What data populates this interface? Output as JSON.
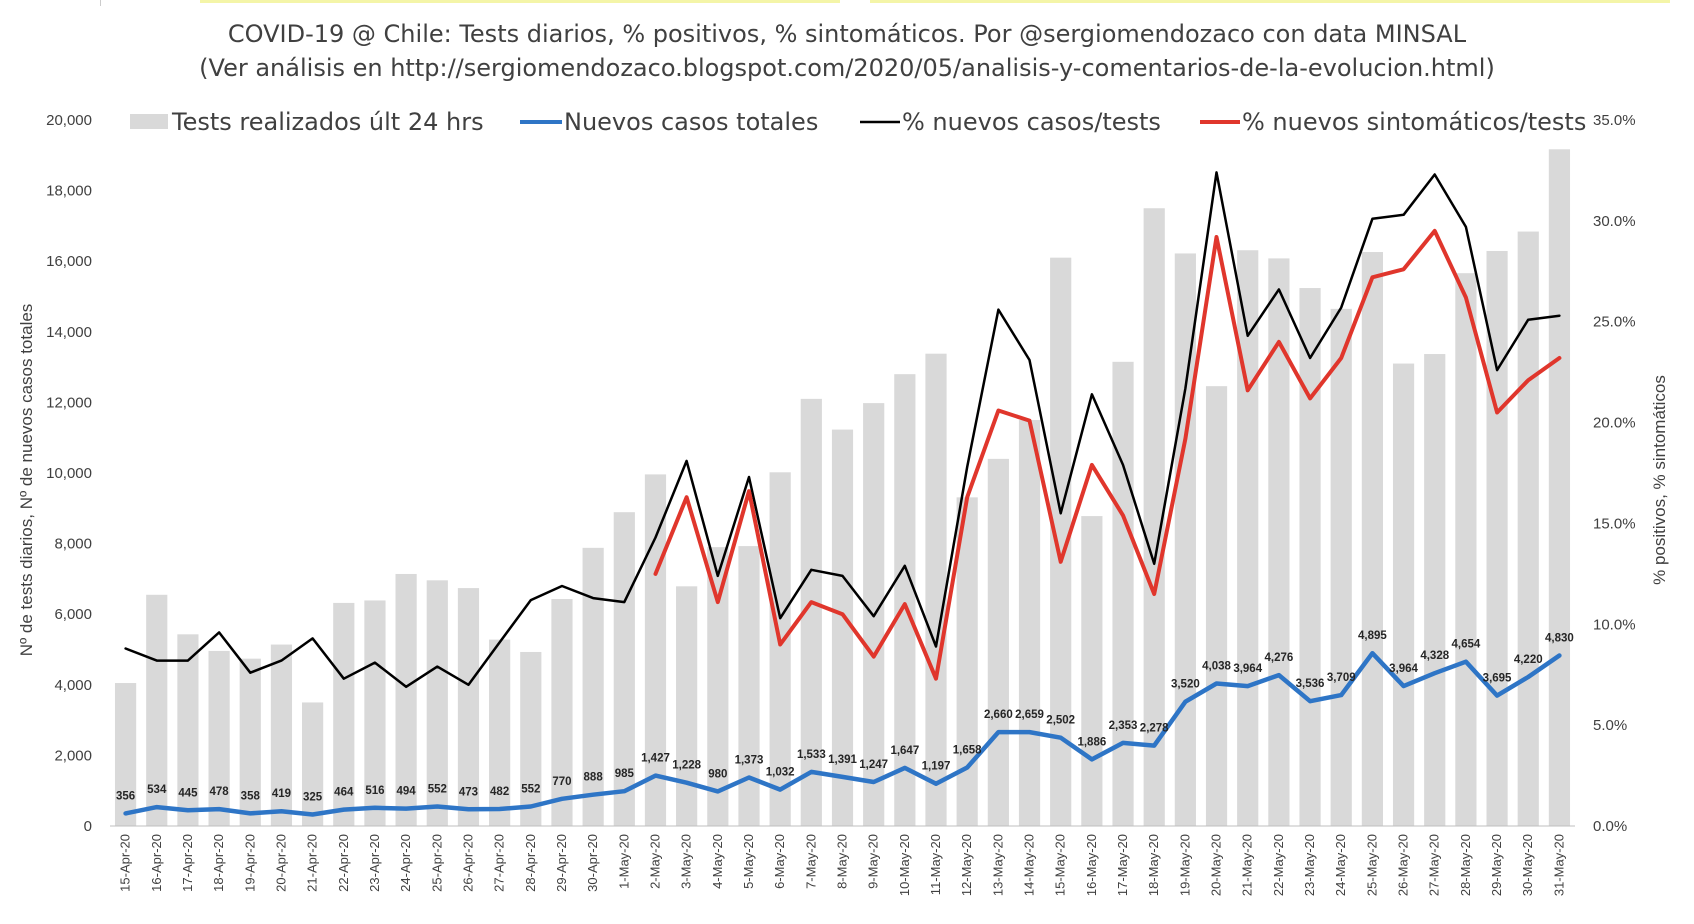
{
  "chart_data": {
    "type": "bar",
    "title": "COVID-19 @ Chile: Tests diarios, % positivos, % sintomáticos. Por @sergiomendozaco con data MINSAL",
    "subtitle": "(Ver análisis en http://sergiomendozaco.blogspot.com/2020/05/analisis-y-comentarios-de-la-evolucion.html)",
    "ylabel": "Nº de tests diarios, Nº de nuevos casos totales",
    "y2label": "% positivos, % sintomáticos",
    "ylim": [
      0,
      20000
    ],
    "y2lim": [
      0,
      35
    ],
    "yticks": [
      "0",
      "2,000",
      "4,000",
      "6,000",
      "8,000",
      "10,000",
      "12,000",
      "14,000",
      "16,000",
      "18,000",
      "20,000"
    ],
    "y2ticks": [
      "0.0%",
      "5.0%",
      "10.0%",
      "15.0%",
      "20.0%",
      "25.0%",
      "30.0%",
      "35.0%"
    ],
    "grid": false,
    "legend_position": "top",
    "categories": [
      "15-Apr-20",
      "16-Apr-20",
      "17-Apr-20",
      "18-Apr-20",
      "19-Apr-20",
      "20-Apr-20",
      "21-Apr-20",
      "22-Apr-20",
      "23-Apr-20",
      "24-Apr-20",
      "25-Apr-20",
      "26-Apr-20",
      "27-Apr-20",
      "28-Apr-20",
      "29-Apr-20",
      "30-Apr-20",
      "1-May-20",
      "2-May-20",
      "3-May-20",
      "4-May-20",
      "5-May-20",
      "6-May-20",
      "7-May-20",
      "8-May-20",
      "9-May-20",
      "10-May-20",
      "11-May-20",
      "12-May-20",
      "13-May-20",
      "14-May-20",
      "15-May-20",
      "16-May-20",
      "17-May-20",
      "18-May-20",
      "19-May-20",
      "20-May-20",
      "21-May-20",
      "22-May-20",
      "23-May-20",
      "24-May-20",
      "25-May-20",
      "26-May-20",
      "27-May-20",
      "28-May-20",
      "29-May-20",
      "30-May-20",
      "31-May-20"
    ],
    "series": [
      {
        "name": "Tests realizados últ 24 hrs",
        "kind": "bar",
        "axis": "left",
        "color": "#d9d9d9",
        "values": [
          4050,
          6550,
          5430,
          4960,
          4740,
          5140,
          3500,
          6320,
          6390,
          7140,
          6960,
          6740,
          5280,
          4930,
          6430,
          7880,
          8890,
          9960,
          6790,
          7900,
          7930,
          10020,
          12100,
          11230,
          11980,
          12800,
          13380,
          9310,
          10400,
          11500,
          16100,
          8780,
          13150,
          17500,
          16220,
          12460,
          16310,
          16080,
          15240,
          14650,
          16260,
          13100,
          13370,
          15660,
          16290,
          16840,
          19170
        ]
      },
      {
        "name": "Nuevos casos totales",
        "kind": "line",
        "axis": "left",
        "color": "#2e75c6",
        "values": [
          356,
          534,
          445,
          478,
          358,
          419,
          325,
          464,
          516,
          494,
          552,
          473,
          482,
          552,
          770,
          888,
          985,
          1427,
          1228,
          980,
          1373,
          1032,
          1533,
          1391,
          1247,
          1647,
          1197,
          1658,
          2660,
          2659,
          2502,
          1886,
          2353,
          2278,
          3520,
          4038,
          3964,
          4276,
          3536,
          3709,
          4895,
          3964,
          4328,
          4654,
          3695,
          4220,
          4830
        ],
        "labels": [
          "356",
          "534",
          "445",
          "478",
          "358",
          "419",
          "325",
          "464",
          "516",
          "494",
          "552",
          "473",
          "482",
          "552",
          "770",
          "888",
          "985",
          "1,427",
          "1,228",
          "980",
          "1,373",
          "1,032",
          "1,533",
          "1,391",
          "1,247",
          "1,647",
          "1,197",
          "1,658",
          "2,660",
          "2,659",
          "2,502",
          "1,886",
          "2,353",
          "2,278",
          "3,520",
          "4,038",
          "3,964",
          "4,276",
          "3,536",
          "3,709",
          "4,895",
          "3,964",
          "4,328",
          "4,654",
          "3,695",
          "4,220",
          "4,830"
        ]
      },
      {
        "name": "% nuevos casos/tests",
        "kind": "line",
        "axis": "right",
        "color": "#000000",
        "values": [
          8.8,
          8.2,
          8.2,
          9.6,
          7.6,
          8.2,
          9.3,
          7.3,
          8.1,
          6.9,
          7.9,
          7.0,
          9.1,
          11.2,
          11.9,
          11.3,
          11.1,
          14.3,
          18.1,
          12.4,
          17.3,
          10.3,
          12.7,
          12.4,
          10.4,
          12.9,
          8.9,
          17.8,
          25.6,
          23.1,
          15.5,
          21.4,
          17.9,
          13.0,
          21.7,
          32.4,
          24.3,
          26.6,
          23.2,
          25.7,
          30.1,
          30.3,
          32.3,
          29.7,
          22.6,
          25.1,
          25.3
        ]
      },
      {
        "name": "% nuevos sintomáticos/tests",
        "kind": "line",
        "axis": "right",
        "color": "#e0362c",
        "values": [
          null,
          null,
          null,
          null,
          null,
          null,
          null,
          null,
          null,
          null,
          null,
          null,
          null,
          null,
          null,
          null,
          null,
          12.5,
          16.3,
          11.1,
          16.6,
          9.0,
          11.1,
          10.5,
          8.4,
          11.0,
          7.3,
          16.3,
          20.6,
          20.1,
          13.1,
          17.9,
          15.4,
          11.5,
          19.2,
          29.2,
          21.6,
          24.0,
          21.2,
          23.2,
          27.2,
          27.6,
          29.5,
          26.2,
          20.5,
          22.1,
          23.2
        ]
      }
    ]
  }
}
